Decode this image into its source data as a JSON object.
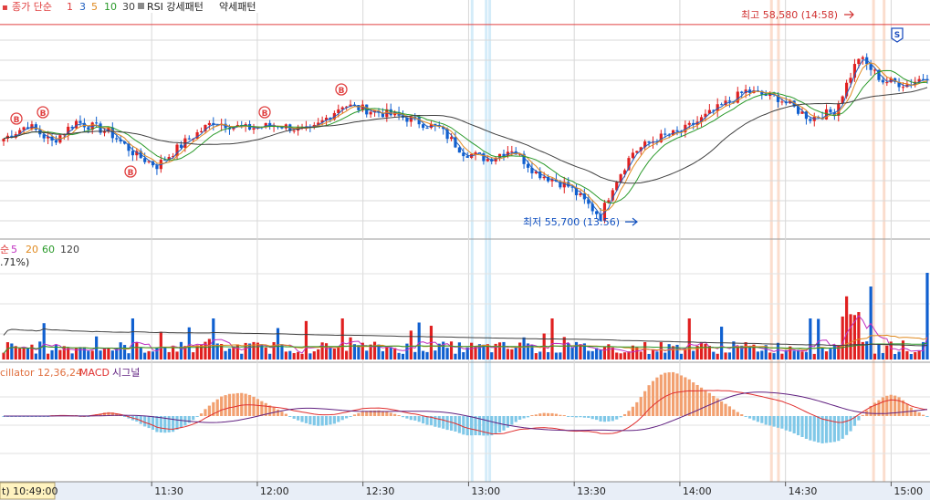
{
  "chart_data": {
    "type": "candlestick",
    "session": "intraday",
    "price_panel": {
      "legend_prefix": "종가 단순",
      "ma_periods": [
        "1",
        "3",
        "5",
        "10",
        "30"
      ],
      "ma_colors": [
        "#e04040",
        "#2060c0",
        "#e08a20",
        "#2a9a2a",
        "#404040"
      ],
      "indicator_checkbox_label": "RSI 강세패턴",
      "indicator_checkbox_label2": "약세패턴",
      "high_label": "최고 58,580 (14:58)",
      "low_label": "최저 55,700 (13:56)",
      "price_high": 58580,
      "price_low": 55700,
      "signal_buy": "B",
      "signal_sell": "S",
      "buy_signal_times": [
        "10:50",
        "10:58",
        "11:30",
        "11:58",
        "12:30"
      ],
      "sell_signal_times": [
        "15:03"
      ],
      "up_color": "#e02020",
      "down_color": "#1060d0"
    },
    "volume_panel": {
      "legend_prefix": "순",
      "ma_periods": [
        "5",
        "20",
        "60",
        "120"
      ],
      "ma_colors": [
        "#c030c0",
        "#e08a20",
        "#2a9a2a",
        "#404040"
      ],
      "percent_label": ".71%)"
    },
    "macd_panel": {
      "legend_oscillator": "cillator 12,36,24",
      "legend_macd": "MACD",
      "legend_signal": "시그널",
      "oscillator_color": "#f2a070",
      "oscillator_negative_color": "#80c8e8",
      "macd_color": "#e03030",
      "signal_color": "#602080"
    },
    "x_axis": {
      "current_time_label": "t) 10:49:00",
      "tick_labels": [
        "11:30",
        "12:00",
        "12:30",
        "13:00",
        "13:30",
        "14:00",
        "14:30",
        "15:00"
      ]
    },
    "highlight_band_colors": [
      "#cfeaf8",
      "#fbd9c8"
    ]
  }
}
